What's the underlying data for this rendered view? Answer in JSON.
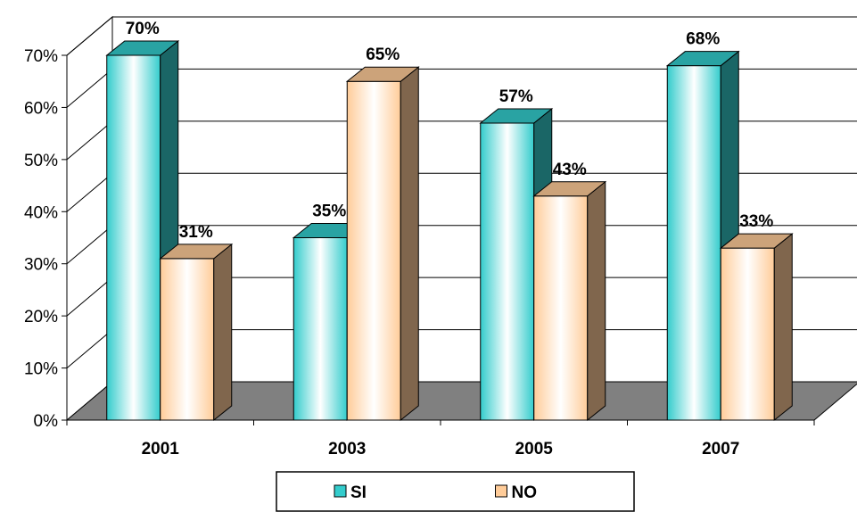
{
  "chart_data": {
    "type": "bar",
    "categories": [
      "2001",
      "2003",
      "2005",
      "2007"
    ],
    "series": [
      {
        "name": "SI",
        "values": [
          70,
          35,
          57,
          68
        ],
        "labels": [
          "70%",
          "35%",
          "57%",
          "68%"
        ],
        "color": "#33cccc"
      },
      {
        "name": "NO",
        "values": [
          31,
          65,
          43,
          33
        ],
        "labels": [
          "31%",
          "65%",
          "43%",
          "33%"
        ],
        "color": "#ffcc99"
      }
    ],
    "y_ticks": [
      "0%",
      "10%",
      "20%",
      "30%",
      "40%",
      "50%",
      "60%",
      "70%"
    ],
    "ylim": [
      0,
      70
    ],
    "grid": true,
    "legend_position": "bottom",
    "floor_color": "#808080",
    "style": "3d-clustered-column"
  }
}
